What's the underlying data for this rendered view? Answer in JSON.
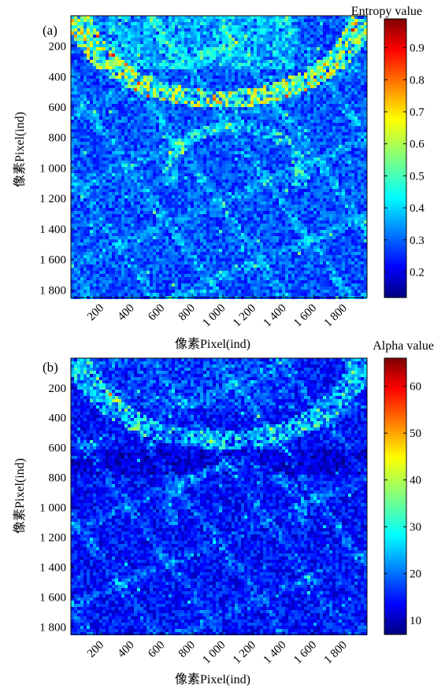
{
  "chart_data": [
    {
      "type": "heatmap",
      "panel_label": "(a)",
      "colorbar_title": "Entropy value",
      "xlabel": "像素Pixel(ind)",
      "ylabel": "像素Pixel(ind)",
      "x_ticks": [
        "200",
        "400",
        "600",
        "800",
        "1 000",
        "1 200",
        "1 400",
        "1 600",
        "1 800"
      ],
      "y_ticks": [
        "200",
        "400",
        "600",
        "800",
        "1 000",
        "1 200",
        "1 400",
        "1 600",
        "1 800"
      ],
      "xlim": [
        1,
        1950
      ],
      "ylim": [
        1,
        1850
      ],
      "colorbar_range": [
        0.12,
        0.99
      ],
      "colorbar_ticks": [
        "0.2",
        "0.3",
        "0.4",
        "0.5",
        "0.6",
        "0.7",
        "0.8",
        "0.9"
      ],
      "colormap": "jet",
      "typical_value": 0.3
    },
    {
      "type": "heatmap",
      "panel_label": "(b)",
      "colorbar_title": "Alpha value",
      "xlabel": "像素Pixel(ind)",
      "ylabel": "像素Pixel(ind)",
      "x_ticks": [
        "200",
        "400",
        "600",
        "800",
        "1 000",
        "1 200",
        "1 400",
        "1 600",
        "1 800"
      ],
      "y_ticks": [
        "200",
        "400",
        "600",
        "800",
        "1 000",
        "1 200",
        "1 400",
        "1 600",
        "1 800"
      ],
      "xlim": [
        1,
        1950
      ],
      "ylim": [
        1,
        1850
      ],
      "colorbar_range": [
        7,
        66
      ],
      "colorbar_ticks": [
        "10",
        "20",
        "30",
        "40",
        "50",
        "60"
      ],
      "colormap": "jet",
      "typical_value": 15
    }
  ]
}
